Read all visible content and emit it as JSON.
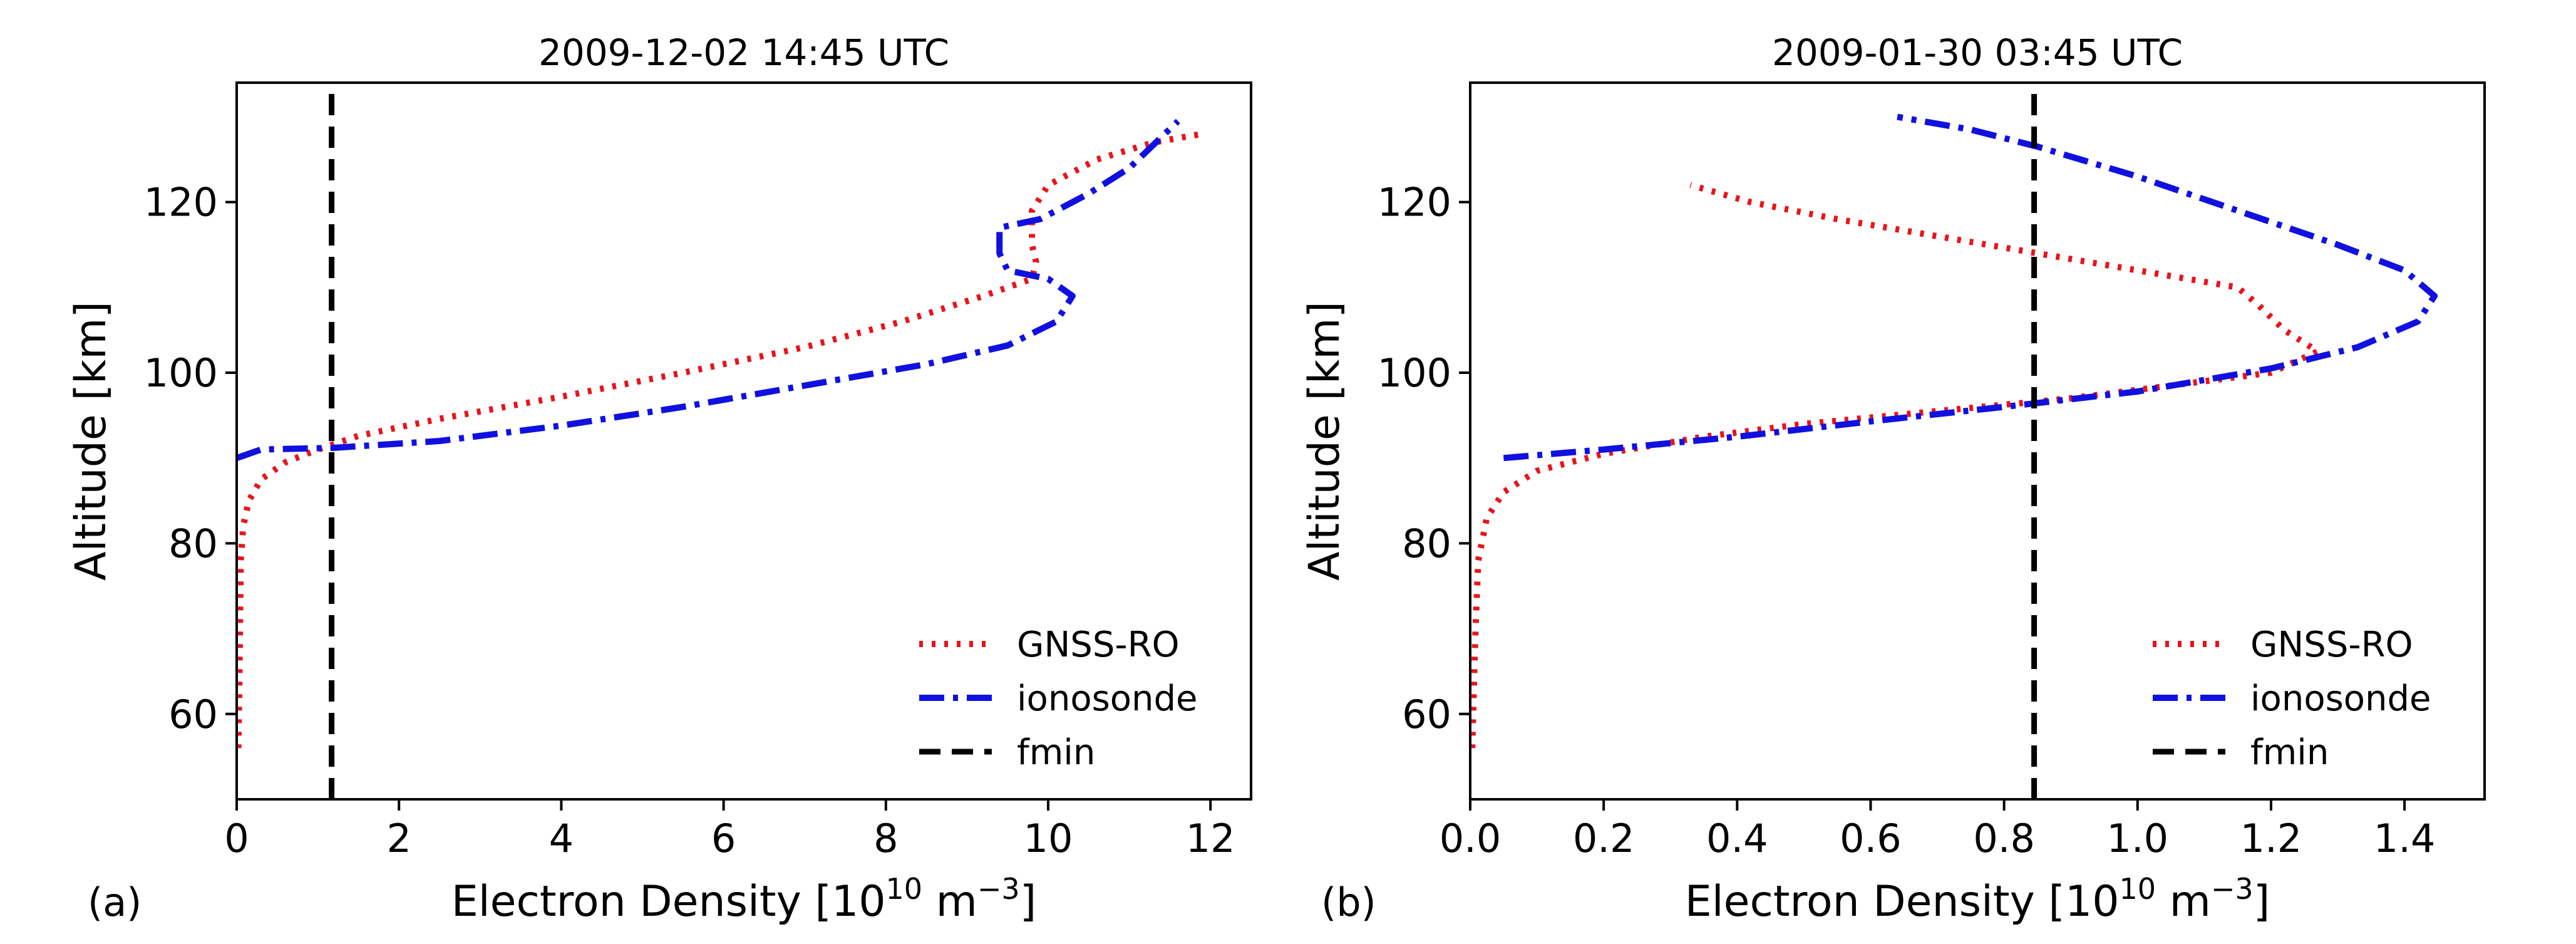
{
  "colors": {
    "gnss": "#e8141b",
    "ionosonde": "#1010e0",
    "fmin": "#000000"
  },
  "chart_data": [
    {
      "type": "line",
      "panel_label": "(a)",
      "title": "2009-12-02 14:45 UTC",
      "xlabel": "Electron Density [10",
      "xlabel_exp": "10",
      "xlabel_unit": " m",
      "xlabel_unit_exp": "−3",
      "xlabel_close": "]",
      "ylabel": "Altitude [km]",
      "xlim": [
        0,
        12.5
      ],
      "ylim": [
        50,
        134
      ],
      "xticks": [
        0,
        2,
        4,
        6,
        8,
        10,
        12
      ],
      "xtick_labels": [
        "0",
        "2",
        "4",
        "6",
        "8",
        "10",
        "12"
      ],
      "yticks": [
        60,
        80,
        100,
        120
      ],
      "ytick_labels": [
        "60",
        "80",
        "100",
        "120"
      ],
      "legend_location": "lower-right",
      "series": [
        {
          "name": "GNSS-RO",
          "style": "dotted",
          "color_key": "gnss",
          "points": [
            [
              0.02,
              56
            ],
            [
              0.03,
              62
            ],
            [
              0.04,
              70
            ],
            [
              0.05,
              78
            ],
            [
              0.08,
              82
            ],
            [
              0.15,
              85
            ],
            [
              0.3,
              87.5
            ],
            [
              0.6,
              89.5
            ],
            [
              1.0,
              91
            ],
            [
              1.5,
              92.6
            ],
            [
              2.5,
              94.6
            ],
            [
              4.0,
              97.2
            ],
            [
              5.5,
              100
            ],
            [
              7.0,
              103
            ],
            [
              8.2,
              106
            ],
            [
              9.2,
              109
            ],
            [
              9.8,
              111
            ],
            [
              9.85,
              113
            ],
            [
              9.8,
              115
            ],
            [
              9.8,
              117
            ],
            [
              9.8,
              119
            ],
            [
              10.0,
              122
            ],
            [
              10.6,
              125
            ],
            [
              11.3,
              127
            ],
            [
              11.9,
              128
            ]
          ]
        },
        {
          "name": "ionosonde",
          "style": "dashdot",
          "color_key": "ionosonde",
          "points": [
            [
              0.0,
              90
            ],
            [
              0.3,
              91
            ],
            [
              1.2,
              91.2
            ],
            [
              2.5,
              92
            ],
            [
              4.0,
              93.8
            ],
            [
              5.5,
              96
            ],
            [
              7.0,
              98.5
            ],
            [
              8.5,
              101
            ],
            [
              9.5,
              103.2
            ],
            [
              10.1,
              106
            ],
            [
              10.3,
              109
            ],
            [
              10.0,
              111
            ],
            [
              9.5,
              112
            ],
            [
              9.4,
              114
            ],
            [
              9.4,
              117
            ],
            [
              9.9,
              118
            ],
            [
              10.5,
              121
            ],
            [
              11.0,
              124
            ],
            [
              11.6,
              129.5
            ]
          ]
        },
        {
          "name": "fmin",
          "style": "dashed",
          "color_key": "fmin",
          "points": [
            [
              1.17,
              50
            ],
            [
              1.17,
              134
            ]
          ]
        }
      ]
    },
    {
      "type": "line",
      "panel_label": "(b)",
      "title": "2009-01-30 03:45 UTC",
      "xlabel": "Electron Density [10",
      "xlabel_exp": "10",
      "xlabel_unit": " m",
      "xlabel_unit_exp": "−3",
      "xlabel_close": "]",
      "ylabel": "Altitude [km]",
      "xlim": [
        0,
        1.52
      ],
      "ylim": [
        50,
        134
      ],
      "xticks": [
        0,
        0.2,
        0.4,
        0.6,
        0.8,
        1.0,
        1.2,
        1.4
      ],
      "xtick_labels": [
        "0.0",
        "0.2",
        "0.4",
        "0.6",
        "0.8",
        "1.0",
        "1.2",
        "1.4"
      ],
      "yticks": [
        60,
        80,
        100,
        120
      ],
      "ytick_labels": [
        "60",
        "80",
        "100",
        "120"
      ],
      "legend_location": "lower-right",
      "series": [
        {
          "name": "GNSS-RO",
          "style": "dotted",
          "color_key": "gnss",
          "points": [
            [
              0.003,
              56
            ],
            [
              0.005,
              62
            ],
            [
              0.008,
              70
            ],
            [
              0.012,
              78
            ],
            [
              0.025,
              83
            ],
            [
              0.05,
              86
            ],
            [
              0.1,
              88.5
            ],
            [
              0.2,
              90.5
            ],
            [
              0.35,
              92.5
            ],
            [
              0.5,
              94
            ],
            [
              0.7,
              95.5
            ],
            [
              0.9,
              97
            ],
            [
              1.05,
              98.5
            ],
            [
              1.2,
              100
            ],
            [
              1.27,
              102.5
            ],
            [
              1.22,
              105
            ],
            [
              1.18,
              108
            ],
            [
              1.15,
              110
            ],
            [
              1.0,
              112
            ],
            [
              0.85,
              114
            ],
            [
              0.7,
              116
            ],
            [
              0.55,
              118
            ],
            [
              0.42,
              120
            ],
            [
              0.33,
              122
            ]
          ]
        },
        {
          "name": "ionosonde",
          "style": "dashdot",
          "color_key": "ionosonde",
          "points": [
            [
              0.05,
              90
            ],
            [
              0.2,
              91
            ],
            [
              0.4,
              92.5
            ],
            [
              0.6,
              94.3
            ],
            [
              0.8,
              96
            ],
            [
              1.0,
              97.8
            ],
            [
              1.2,
              100.5
            ],
            [
              1.33,
              103
            ],
            [
              1.42,
              106
            ],
            [
              1.445,
              109
            ],
            [
              1.4,
              112
            ],
            [
              1.3,
              115
            ],
            [
              1.15,
              119
            ],
            [
              1.0,
              123
            ],
            [
              0.85,
              126.5
            ],
            [
              0.75,
              128.5
            ],
            [
              0.64,
              130
            ]
          ]
        },
        {
          "name": "fmin",
          "style": "dashed",
          "color_key": "fmin",
          "points": [
            [
              0.845,
              50
            ],
            [
              0.845,
              134
            ]
          ]
        }
      ]
    }
  ]
}
